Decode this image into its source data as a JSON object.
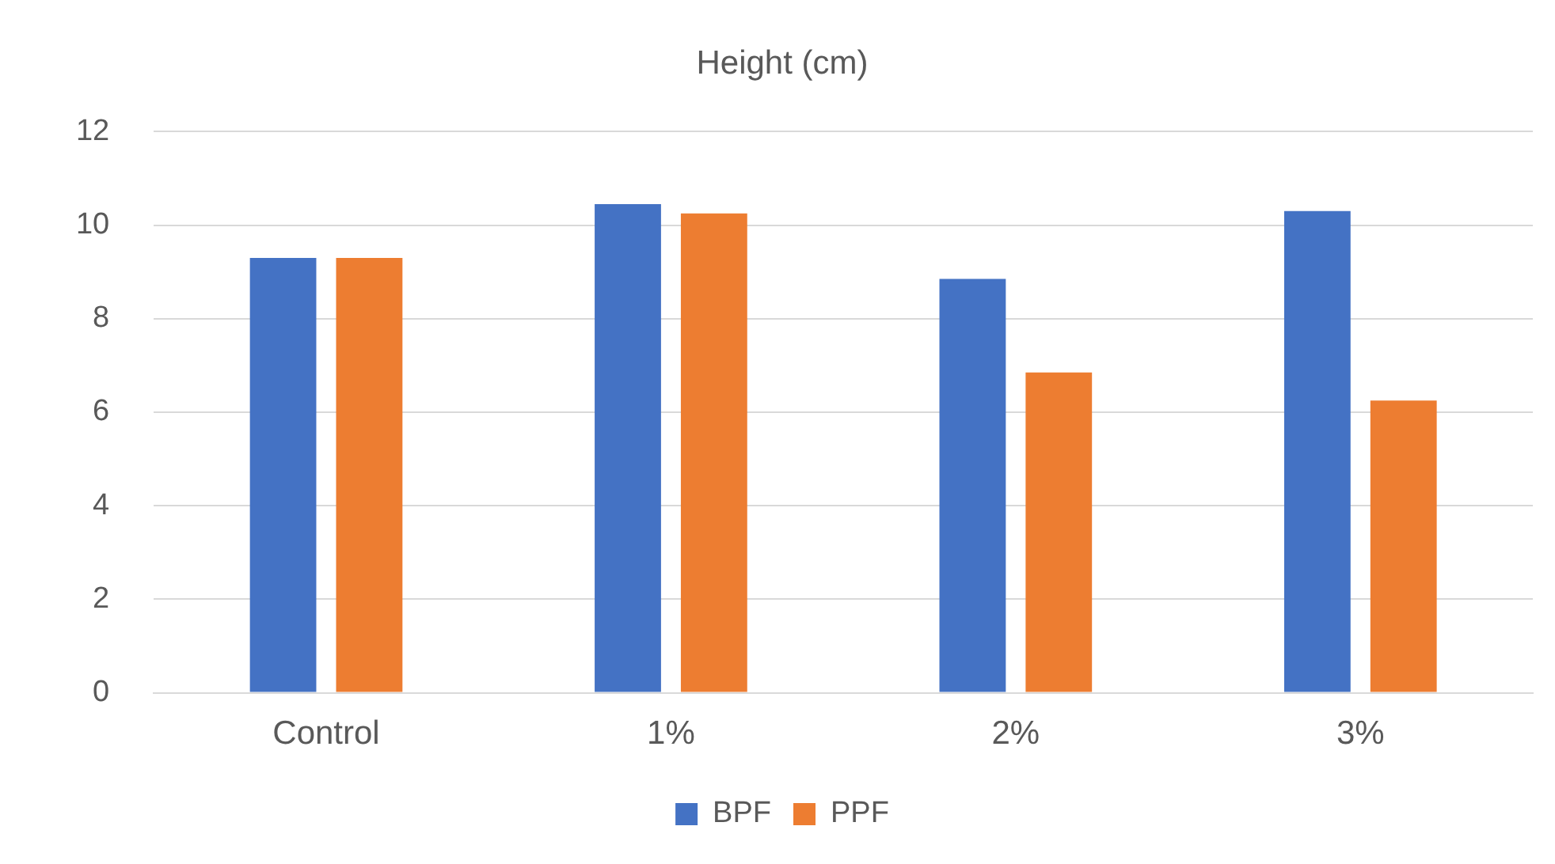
{
  "chart_data": {
    "type": "bar",
    "title": "Height (cm)",
    "categories": [
      "Control",
      "1%",
      "2%",
      "3%"
    ],
    "series": [
      {
        "name": "BPF",
        "color": "#4472c4",
        "values": [
          9.3,
          10.45,
          8.85,
          10.3
        ]
      },
      {
        "name": "PPF",
        "color": "#ed7d31",
        "values": [
          9.3,
          10.25,
          6.85,
          6.25
        ]
      }
    ],
    "ylim": [
      0,
      12
    ],
    "yticks": [
      0,
      2,
      4,
      6,
      8,
      10,
      12
    ],
    "grid": "y",
    "legend": "bottom"
  }
}
